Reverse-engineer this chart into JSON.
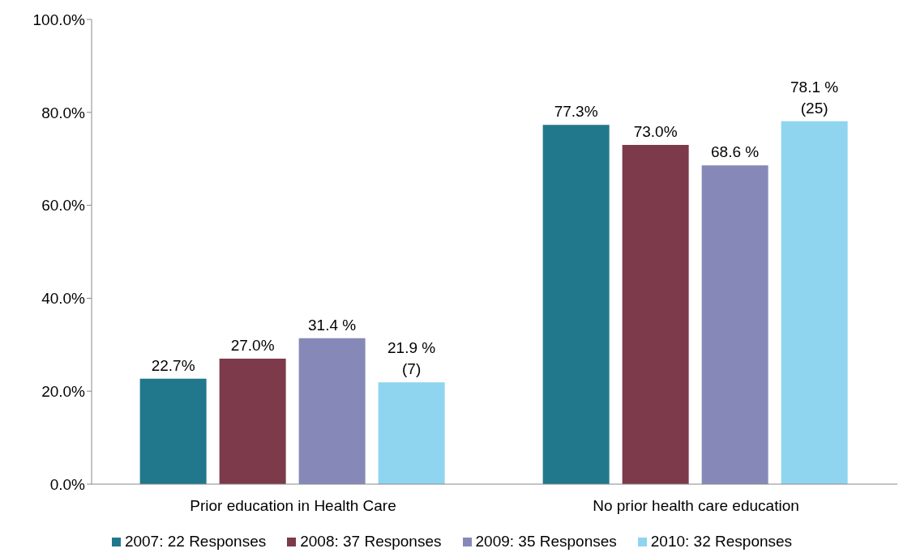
{
  "chart_data": {
    "type": "bar",
    "categories": [
      "Prior education in Health Care",
      "No prior health care education"
    ],
    "series": [
      {
        "name": "2007: 22 Responses",
        "color": "#21788c",
        "values": [
          22.7,
          77.3
        ],
        "value_labels": [
          "22.7%",
          "77.3%"
        ]
      },
      {
        "name": "2008: 37 Responses",
        "color": "#7c3a4a",
        "values": [
          27.0,
          73.0
        ],
        "value_labels": [
          "27.0%",
          "73.0%"
        ]
      },
      {
        "name": "2009: 35 Responses",
        "color": "#8689b8",
        "values": [
          31.4,
          68.6
        ],
        "value_labels": [
          "31.4 %",
          "68.6 %"
        ]
      },
      {
        "name": "2010: 32 Responses",
        "color": "#8fd5ef",
        "values": [
          21.9,
          78.1
        ],
        "value_labels": [
          "21.9 %\n(7)",
          "78.1 %\n(25)"
        ]
      }
    ],
    "ylim": [
      0,
      100
    ],
    "yticks": [
      {
        "value": 0,
        "label": "0.0%"
      },
      {
        "value": 20,
        "label": "20.0%"
      },
      {
        "value": 40,
        "label": "40.0%"
      },
      {
        "value": 60,
        "label": "60.0%"
      },
      {
        "value": 80,
        "label": "80.0%"
      },
      {
        "value": 100,
        "label": "100.0%"
      }
    ],
    "grid": false,
    "legend": "bottom"
  }
}
